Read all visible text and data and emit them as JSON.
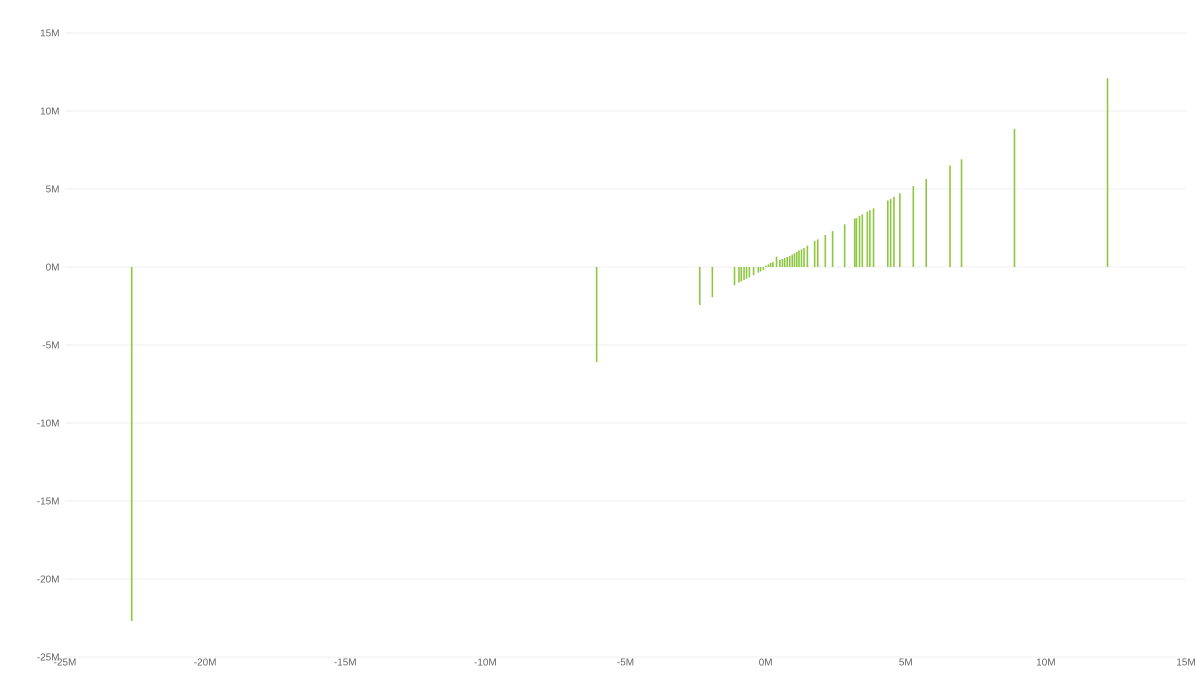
{
  "chart_data": {
    "type": "bar",
    "color": "#8dc63f",
    "grid": "y",
    "x": [
      -22.62,
      -6.03,
      -2.35,
      -1.9,
      -1.11,
      -0.95,
      -0.87,
      -0.77,
      -0.68,
      -0.58,
      -0.43,
      -0.26,
      -0.18,
      -0.08,
      0.01,
      0.1,
      0.18,
      0.26,
      0.39,
      0.51,
      0.6,
      0.68,
      0.77,
      0.86,
      0.95,
      1.03,
      1.11,
      1.19,
      1.28,
      1.37,
      1.49,
      1.75,
      1.86,
      2.13,
      2.39,
      2.82,
      3.18,
      3.24,
      3.35,
      3.45,
      3.63,
      3.72,
      3.85,
      4.36,
      4.46,
      4.58,
      4.79,
      5.27,
      5.73,
      6.58,
      6.99,
      8.88,
      12.2
    ],
    "values": [
      -22.7,
      -6.1,
      -2.44,
      -1.94,
      -1.17,
      -1.0,
      -0.92,
      -0.83,
      -0.75,
      -0.66,
      -0.53,
      -0.36,
      -0.28,
      -0.19,
      0.1,
      0.17,
      0.26,
      0.32,
      0.66,
      0.45,
      0.51,
      0.58,
      0.64,
      0.7,
      0.79,
      0.88,
      0.96,
      1.05,
      1.13,
      1.22,
      1.37,
      1.67,
      1.77,
      2.05,
      2.3,
      2.74,
      3.1,
      3.13,
      3.27,
      3.37,
      3.55,
      3.63,
      3.76,
      4.27,
      4.36,
      4.51,
      4.72,
      5.19,
      5.64,
      6.5,
      6.9,
      8.85,
      12.1
    ],
    "xlim": [
      -25,
      15
    ],
    "ylim": [
      -25,
      15
    ],
    "xticks": [
      {
        "value": -25,
        "label": "-25M"
      },
      {
        "value": -20,
        "label": "-20M"
      },
      {
        "value": -15,
        "label": "-15M"
      },
      {
        "value": -10,
        "label": "-10M"
      },
      {
        "value": -5,
        "label": "-5M"
      },
      {
        "value": 0,
        "label": "0M"
      },
      {
        "value": 5,
        "label": "5M"
      },
      {
        "value": 10,
        "label": "10M"
      },
      {
        "value": 15,
        "label": "15M"
      }
    ],
    "yticks": [
      {
        "value": -25,
        "label": "-25M"
      },
      {
        "value": -20,
        "label": "-20M"
      },
      {
        "value": -15,
        "label": "-15M"
      },
      {
        "value": -10,
        "label": "-10M"
      },
      {
        "value": -5,
        "label": "-5M"
      },
      {
        "value": 0,
        "label": "0M"
      },
      {
        "value": 5,
        "label": "5M"
      },
      {
        "value": 10,
        "label": "10M"
      },
      {
        "value": 15,
        "label": "15M"
      }
    ]
  }
}
